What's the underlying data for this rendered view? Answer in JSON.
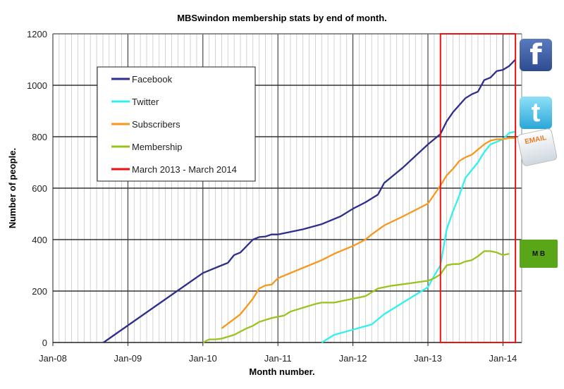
{
  "chart_data": {
    "type": "line",
    "title": "MBSwindon membership stats by end of month.",
    "xlabel": "Month number.",
    "ylabel": "Number of people.",
    "x_unit": "months since Jan-08",
    "xlim": [
      0,
      75
    ],
    "ylim": [
      0,
      1200
    ],
    "yticks": [
      0,
      200,
      400,
      600,
      800,
      1000,
      1200
    ],
    "xticks": [
      {
        "m": 0,
        "label": "Jan-08"
      },
      {
        "m": 12,
        "label": "Jan-09"
      },
      {
        "m": 24,
        "label": "Jan-10"
      },
      {
        "m": 36,
        "label": "Jan-11"
      },
      {
        "m": 48,
        "label": "Jan-12"
      },
      {
        "m": 60,
        "label": "Jan-13"
      },
      {
        "m": 72,
        "label": "Jan-14"
      }
    ],
    "grid": true,
    "legend_position": "upper-left",
    "series": [
      {
        "name": "Facebook",
        "color": "#2e2e8c",
        "points": [
          [
            8.1,
            0
          ],
          [
            24,
            270
          ],
          [
            27,
            300
          ],
          [
            28,
            310
          ],
          [
            29,
            340
          ],
          [
            30,
            350
          ],
          [
            32,
            400
          ],
          [
            33,
            410
          ],
          [
            34,
            412
          ],
          [
            35,
            420
          ],
          [
            36,
            420
          ],
          [
            40,
            440
          ],
          [
            43,
            460
          ],
          [
            44,
            470
          ],
          [
            46,
            490
          ],
          [
            48,
            520
          ],
          [
            50,
            545
          ],
          [
            52,
            575
          ],
          [
            53,
            620
          ],
          [
            56,
            680
          ],
          [
            60,
            770
          ],
          [
            62,
            810
          ],
          [
            63,
            860
          ],
          [
            64,
            895
          ],
          [
            66,
            950
          ],
          [
            67,
            965
          ],
          [
            68,
            975
          ],
          [
            69,
            1020
          ],
          [
            70,
            1030
          ],
          [
            71,
            1055
          ],
          [
            72,
            1060
          ],
          [
            73,
            1075
          ],
          [
            74,
            1100
          ]
        ]
      },
      {
        "name": "Twitter",
        "color": "#33f0f0",
        "points": [
          [
            43,
            0
          ],
          [
            45,
            30
          ],
          [
            48,
            50
          ],
          [
            51,
            70
          ],
          [
            53,
            110
          ],
          [
            56,
            155
          ],
          [
            60,
            215
          ],
          [
            61,
            260
          ],
          [
            62,
            300
          ],
          [
            63,
            440
          ],
          [
            64,
            510
          ],
          [
            65,
            570
          ],
          [
            66,
            640
          ],
          [
            68,
            700
          ],
          [
            69,
            740
          ],
          [
            70,
            770
          ],
          [
            71,
            780
          ],
          [
            72,
            790
          ],
          [
            73,
            815
          ],
          [
            74,
            820
          ]
        ]
      },
      {
        "name": "Subscribers",
        "color": "#f7981d",
        "points": [
          [
            27,
            55
          ],
          [
            30,
            110
          ],
          [
            31,
            140
          ],
          [
            32,
            170
          ],
          [
            33,
            210
          ],
          [
            34,
            222
          ],
          [
            35,
            225
          ],
          [
            36,
            250
          ],
          [
            38,
            270
          ],
          [
            41,
            300
          ],
          [
            43,
            320
          ],
          [
            45,
            345
          ],
          [
            48,
            375
          ],
          [
            50,
            400
          ],
          [
            51,
            420
          ],
          [
            53,
            455
          ],
          [
            56,
            490
          ],
          [
            60,
            540
          ],
          [
            61,
            575
          ],
          [
            62,
            610
          ],
          [
            63,
            650
          ],
          [
            64,
            675
          ],
          [
            65,
            705
          ],
          [
            66,
            720
          ],
          [
            67,
            730
          ],
          [
            68,
            750
          ],
          [
            69,
            770
          ],
          [
            70,
            785
          ],
          [
            71,
            790
          ],
          [
            72,
            790
          ],
          [
            73,
            795
          ],
          [
            74,
            795
          ]
        ]
      },
      {
        "name": "Membership",
        "color": "#99c31c",
        "points": [
          [
            24,
            0
          ],
          [
            25,
            12
          ],
          [
            26,
            12
          ],
          [
            27,
            15
          ],
          [
            29,
            30
          ],
          [
            31,
            55
          ],
          [
            32,
            65
          ],
          [
            33,
            80
          ],
          [
            35,
            95
          ],
          [
            36,
            100
          ],
          [
            37,
            105
          ],
          [
            38,
            120
          ],
          [
            40,
            135
          ],
          [
            42,
            150
          ],
          [
            43,
            155
          ],
          [
            45,
            155
          ],
          [
            48,
            170
          ],
          [
            50,
            180
          ],
          [
            51,
            195
          ],
          [
            52,
            210
          ],
          [
            54,
            220
          ],
          [
            57,
            230
          ],
          [
            60,
            240
          ],
          [
            61,
            250
          ],
          [
            62,
            265
          ],
          [
            63,
            300
          ],
          [
            64,
            305
          ],
          [
            65,
            305
          ],
          [
            66,
            315
          ],
          [
            67,
            320
          ],
          [
            68,
            335
          ],
          [
            69,
            355
          ],
          [
            70,
            355
          ],
          [
            71,
            350
          ],
          [
            72,
            340
          ],
          [
            73,
            345
          ]
        ]
      }
    ],
    "highlight": {
      "name": "March 2013 - March 2014",
      "color": "#ee1111",
      "from_m": 62,
      "to_m": 74
    }
  },
  "icons": {
    "facebook": "f",
    "email": "EMAIL",
    "membership": "M B"
  }
}
